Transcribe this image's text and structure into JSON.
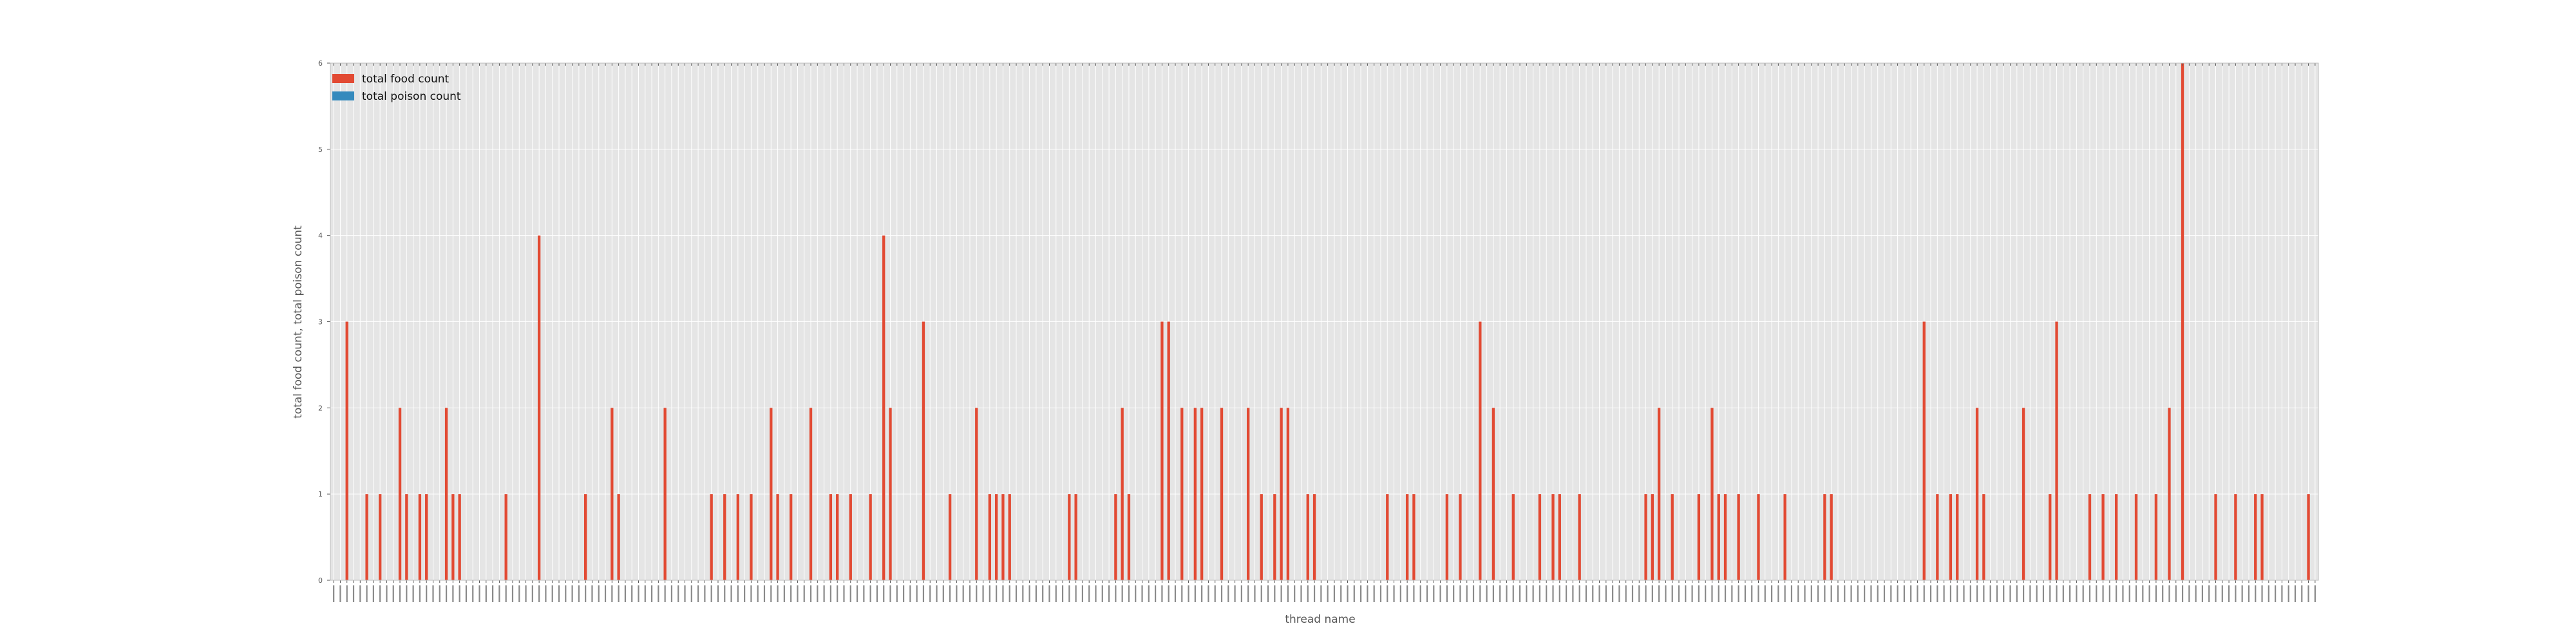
{
  "chart_data": {
    "type": "bar",
    "title": "",
    "xlabel": "thread name",
    "ylabel": "total food count, total poison count",
    "ylim": [
      0,
      6
    ],
    "yticks": [
      0,
      1,
      2,
      3,
      4,
      5,
      6
    ],
    "grid": true,
    "legend_position": "top-left",
    "num_categories": 300,
    "series": [
      {
        "name": "total food count",
        "color": "#e24a33",
        "nonzero": [
          [
            2,
            3
          ],
          [
            5,
            1
          ],
          [
            7,
            1
          ],
          [
            10,
            2
          ],
          [
            11,
            1
          ],
          [
            13,
            1
          ],
          [
            14,
            1
          ],
          [
            17,
            2
          ],
          [
            18,
            1
          ],
          [
            19,
            1
          ],
          [
            26,
            1
          ],
          [
            31,
            4
          ],
          [
            38,
            1
          ],
          [
            42,
            2
          ],
          [
            43,
            1
          ],
          [
            50,
            2
          ],
          [
            57,
            1
          ],
          [
            59,
            1
          ],
          [
            61,
            1
          ],
          [
            63,
            1
          ],
          [
            66,
            2
          ],
          [
            67,
            1
          ],
          [
            69,
            1
          ],
          [
            72,
            2
          ],
          [
            75,
            1
          ],
          [
            76,
            1
          ],
          [
            78,
            1
          ],
          [
            81,
            1
          ],
          [
            83,
            4
          ],
          [
            84,
            2
          ],
          [
            89,
            3
          ],
          [
            93,
            1
          ],
          [
            97,
            2
          ],
          [
            99,
            1
          ],
          [
            100,
            1
          ],
          [
            101,
            1
          ],
          [
            102,
            1
          ],
          [
            111,
            1
          ],
          [
            112,
            1
          ],
          [
            118,
            1
          ],
          [
            119,
            2
          ],
          [
            120,
            1
          ],
          [
            125,
            3
          ],
          [
            126,
            3
          ],
          [
            128,
            2
          ],
          [
            130,
            2
          ],
          [
            131,
            2
          ],
          [
            134,
            2
          ],
          [
            138,
            2
          ],
          [
            140,
            1
          ],
          [
            142,
            1
          ],
          [
            143,
            2
          ],
          [
            144,
            2
          ],
          [
            147,
            1
          ],
          [
            148,
            1
          ],
          [
            159,
            1
          ],
          [
            162,
            1
          ],
          [
            163,
            1
          ],
          [
            168,
            1
          ],
          [
            170,
            1
          ],
          [
            173,
            3
          ],
          [
            175,
            2
          ],
          [
            178,
            1
          ],
          [
            182,
            1
          ],
          [
            184,
            1
          ],
          [
            185,
            1
          ],
          [
            188,
            1
          ],
          [
            198,
            1
          ],
          [
            199,
            1
          ],
          [
            200,
            2
          ],
          [
            202,
            1
          ],
          [
            206,
            1
          ],
          [
            208,
            2
          ],
          [
            209,
            1
          ],
          [
            210,
            1
          ],
          [
            212,
            1
          ],
          [
            215,
            1
          ],
          [
            219,
            1
          ],
          [
            225,
            1
          ],
          [
            226,
            1
          ],
          [
            240,
            3
          ],
          [
            242,
            1
          ],
          [
            244,
            1
          ],
          [
            245,
            1
          ],
          [
            248,
            2
          ],
          [
            249,
            1
          ],
          [
            255,
            2
          ],
          [
            259,
            1
          ],
          [
            260,
            3
          ],
          [
            265,
            1
          ],
          [
            267,
            1
          ],
          [
            269,
            1
          ],
          [
            272,
            1
          ],
          [
            275,
            1
          ],
          [
            277,
            2
          ],
          [
            279,
            6
          ],
          [
            284,
            1
          ],
          [
            287,
            1
          ],
          [
            290,
            1
          ],
          [
            291,
            1
          ],
          [
            298,
            1
          ]
        ]
      },
      {
        "name": "total poison count",
        "color": "#348abd",
        "nonzero": []
      }
    ]
  }
}
